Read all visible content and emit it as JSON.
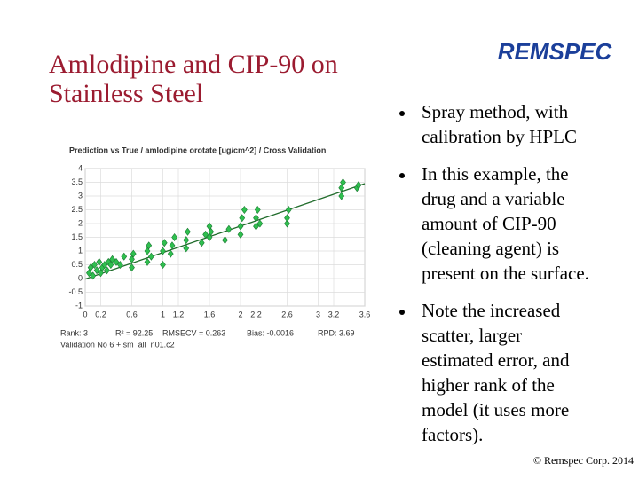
{
  "title": [
    "Amlodipine and CIP-90 on",
    "Stainless Steel"
  ],
  "logo": "REMSPEC",
  "bullets": [
    [
      "Spray method, with",
      "calibration by HPLC"
    ],
    [
      "In this example, the",
      "drug and a variable",
      "amount of CIP-90",
      "(cleaning agent) is",
      "present on the surface."
    ],
    [
      "Note the increased",
      "scatter, larger",
      "estimated error, and",
      "higher rank of the",
      "model (it uses more",
      "factors)."
    ]
  ],
  "footer": "© Remspec Corp. 2014",
  "chart_data": {
    "type": "scatter",
    "title": "Prediction vs True  /  amlodipine orotate [ug/cm^2]  /  Cross Validation",
    "stats": [
      "Rank: 3",
      "R² = 92.25",
      "RMSECV = 0.263",
      "Bias: -0.0016",
      "RPD: 3.69"
    ],
    "validation": "Validation No 6 +     sm_all_n01.c2",
    "color": "#2fbf4f",
    "xlim": [
      0,
      3.6
    ],
    "ylim": [
      -1,
      4
    ],
    "xticks": [
      0,
      0.2,
      0.6,
      1,
      1.2,
      1.6,
      2,
      2.2,
      2.6,
      3,
      3.2,
      3.6
    ],
    "yticks": [
      4,
      3.5,
      3,
      2.5,
      2,
      1.5,
      1,
      0.5,
      0,
      -0.5,
      -1
    ],
    "grid": true,
    "x": [
      0.05,
      0.07,
      0.1,
      0.12,
      0.15,
      0.18,
      0.2,
      0.22,
      0.25,
      0.28,
      0.3,
      0.33,
      0.35,
      0.4,
      0.45,
      0.5,
      0.6,
      0.6,
      0.62,
      0.8,
      0.8,
      0.82,
      0.85,
      1.0,
      1.0,
      1.02,
      1.1,
      1.12,
      1.15,
      1.3,
      1.3,
      1.32,
      1.5,
      1.55,
      1.6,
      1.6,
      1.62,
      1.8,
      1.85,
      2.0,
      2.0,
      2.02,
      2.05,
      2.2,
      2.2,
      2.22,
      2.25,
      2.6,
      2.6,
      2.62,
      3.3,
      3.3,
      3.32,
      3.5,
      3.52
    ],
    "values": [
      0.2,
      0.4,
      0.1,
      0.5,
      0.3,
      0.6,
      0.2,
      0.4,
      0.5,
      0.3,
      0.6,
      0.5,
      0.7,
      0.6,
      0.5,
      0.8,
      0.4,
      0.7,
      0.9,
      0.6,
      1.0,
      1.2,
      0.8,
      0.5,
      1.0,
      1.3,
      0.9,
      1.2,
      1.5,
      1.1,
      1.4,
      1.7,
      1.3,
      1.6,
      1.5,
      1.9,
      1.7,
      1.4,
      1.8,
      1.6,
      1.9,
      2.2,
      2.5,
      1.9,
      2.2,
      2.5,
      2.0,
      2.0,
      2.2,
      2.5,
      3.0,
      3.3,
      3.5,
      3.3,
      3.4
    ],
    "fit_line": {
      "x": [
        0,
        3.6
      ],
      "values": [
        -0.02,
        3.45
      ]
    }
  }
}
